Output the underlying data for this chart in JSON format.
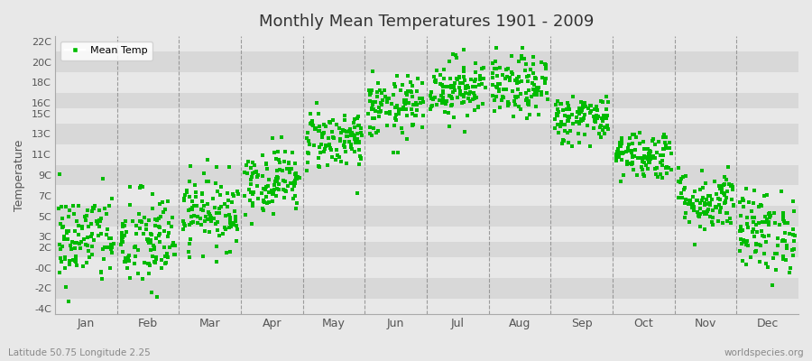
{
  "title": "Monthly Mean Temperatures 1901 - 2009",
  "ylabel": "Temperature",
  "subtitle": "Latitude 50.75 Longitude 2.25",
  "watermark": "worldspecies.org",
  "legend_label": "Mean Temp",
  "dot_color": "#00bb00",
  "bg_color": "#e8e8e8",
  "plot_bg_light": "#e8e8e8",
  "plot_bg_dark": "#d8d8d8",
  "grid_color": "#cccccc",
  "ytick_labels": [
    "22C",
    "20C",
    "18C",
    "16C",
    "15C",
    "13C",
    "11C",
    "9C",
    "7C",
    "5C",
    "3C",
    "2C",
    "-0C",
    "-2C",
    "-4C"
  ],
  "ytick_values": [
    22,
    20,
    18,
    16,
    15,
    13,
    11,
    9,
    7,
    5,
    3,
    2,
    0,
    -2,
    -4
  ],
  "ylim": [
    -4.5,
    22.5
  ],
  "months": [
    "Jan",
    "Feb",
    "Mar",
    "Apr",
    "May",
    "Jun",
    "Jul",
    "Aug",
    "Sep",
    "Oct",
    "Nov",
    "Dec"
  ],
  "monthly_means": [
    2.8,
    2.5,
    5.5,
    8.5,
    12.5,
    15.5,
    17.5,
    17.5,
    14.5,
    11.0,
    6.5,
    3.5
  ],
  "monthly_stds": [
    2.3,
    2.5,
    1.8,
    1.6,
    1.5,
    1.5,
    1.5,
    1.5,
    1.2,
    1.2,
    1.5,
    2.0
  ],
  "num_years": 109,
  "seed": 42,
  "marker_size": 5,
  "dashed_line_color": "#888888"
}
